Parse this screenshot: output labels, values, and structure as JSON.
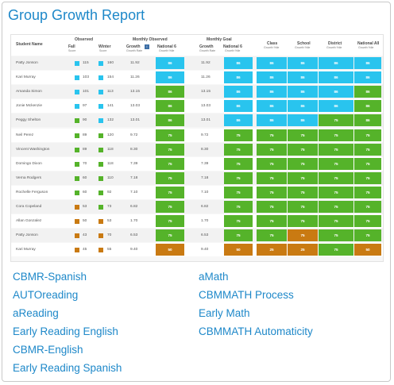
{
  "title": "Group Growth Report",
  "colors": {
    "blue": "#29c4ee",
    "green": "#55b32a",
    "orange": "#c97a12",
    "link": "#1e88c9"
  },
  "report": {
    "headers": {
      "student": "Student Name",
      "observed": "Observed",
      "fall": "Fall",
      "winter": "Winter",
      "score": "Score",
      "monthly_observed": "Monthly Observed",
      "monthly_goal": "Monthly Goal",
      "growth": "Growth",
      "national": "National 6",
      "growth_rate": "Growth Rate",
      "growth_pct": "Growth %ile",
      "class": "Class",
      "school": "School",
      "district": "District",
      "national_all": "National All"
    },
    "rows": [
      {
        "name": "Patty Jonson",
        "fall": "115",
        "winter": "160",
        "growth": "11.92",
        "obs": "86",
        "goal": "11.92",
        "goal_pct": "86",
        "cls": "86",
        "sch": "86",
        "dist": "86",
        "nat": "86",
        "fc": "blue",
        "wc": "blue",
        "oc": "blue",
        "gc": "blue",
        "cc": "blue",
        "sc": "blue",
        "dc": "blue",
        "nc": "blue"
      },
      {
        "name": "Kari Murray",
        "fall": "103",
        "winter": "154",
        "growth": "11.26",
        "obs": "86",
        "goal": "11.26",
        "goal_pct": "86",
        "cls": "86",
        "sch": "86",
        "dist": "86",
        "nat": "86",
        "fc": "blue",
        "wc": "blue",
        "oc": "blue",
        "gc": "blue",
        "cc": "blue",
        "sc": "blue",
        "dc": "blue",
        "nc": "blue"
      },
      {
        "name": "Amanda Simon",
        "fall": "101",
        "winter": "113",
        "growth": "13.15",
        "obs": "86",
        "goal": "13.15",
        "goal_pct": "86",
        "cls": "86",
        "sch": "86",
        "dist": "86",
        "nat": "86",
        "fc": "blue",
        "wc": "blue",
        "oc": "green",
        "gc": "blue",
        "cc": "blue",
        "sc": "blue",
        "dc": "blue",
        "nc": "green"
      },
      {
        "name": "Jonie Mckenzie",
        "fall": "97",
        "winter": "141",
        "growth": "13.03",
        "obs": "86",
        "goal": "13.03",
        "goal_pct": "86",
        "cls": "86",
        "sch": "86",
        "dist": "86",
        "nat": "86",
        "fc": "blue",
        "wc": "blue",
        "oc": "green",
        "gc": "blue",
        "cc": "blue",
        "sc": "blue",
        "dc": "blue",
        "nc": "green"
      },
      {
        "name": "Peggy Shelton",
        "fall": "90",
        "winter": "132",
        "growth": "13.01",
        "obs": "86",
        "goal": "13.01",
        "goal_pct": "86",
        "cls": "86",
        "sch": "86",
        "dist": "75",
        "nat": "86",
        "fc": "green",
        "wc": "blue",
        "oc": "green",
        "gc": "blue",
        "cc": "blue",
        "sc": "blue",
        "dc": "green",
        "nc": "green"
      },
      {
        "name": "Neil Perez",
        "fall": "89",
        "winter": "120",
        "growth": "9.72",
        "obs": "75",
        "goal": "9.72",
        "goal_pct": "75",
        "cls": "75",
        "sch": "75",
        "dist": "75",
        "nat": "75",
        "fc": "green",
        "wc": "green",
        "oc": "green",
        "gc": "green",
        "cc": "green",
        "sc": "green",
        "dc": "green",
        "nc": "green"
      },
      {
        "name": "Vincent Washington",
        "fall": "89",
        "winter": "118",
        "growth": "8.30",
        "obs": "75",
        "goal": "8.30",
        "goal_pct": "75",
        "cls": "75",
        "sch": "75",
        "dist": "75",
        "nat": "75",
        "fc": "green",
        "wc": "green",
        "oc": "green",
        "gc": "green",
        "cc": "green",
        "sc": "green",
        "dc": "green",
        "nc": "green"
      },
      {
        "name": "Domingo Dixon",
        "fall": "70",
        "winter": "118",
        "growth": "7.39",
        "obs": "75",
        "goal": "7.39",
        "goal_pct": "75",
        "cls": "75",
        "sch": "75",
        "dist": "75",
        "nat": "75",
        "fc": "green",
        "wc": "green",
        "oc": "green",
        "gc": "green",
        "cc": "green",
        "sc": "green",
        "dc": "green",
        "nc": "green"
      },
      {
        "name": "Verna Rodgers",
        "fall": "60",
        "winter": "110",
        "growth": "7.18",
        "obs": "75",
        "goal": "7.18",
        "goal_pct": "75",
        "cls": "75",
        "sch": "75",
        "dist": "75",
        "nat": "75",
        "fc": "green",
        "wc": "green",
        "oc": "green",
        "gc": "green",
        "cc": "green",
        "sc": "green",
        "dc": "green",
        "nc": "green"
      },
      {
        "name": "Rochelle Ferguson",
        "fall": "60",
        "winter": "92",
        "growth": "7.10",
        "obs": "75",
        "goal": "7.10",
        "goal_pct": "75",
        "cls": "75",
        "sch": "75",
        "dist": "75",
        "nat": "75",
        "fc": "green",
        "wc": "green",
        "oc": "green",
        "gc": "green",
        "cc": "green",
        "sc": "green",
        "dc": "green",
        "nc": "green"
      },
      {
        "name": "Cora Copeland",
        "fall": "53",
        "winter": "73",
        "growth": "6.82",
        "obs": "75",
        "goal": "6.82",
        "goal_pct": "75",
        "cls": "75",
        "sch": "75",
        "dist": "75",
        "nat": "75",
        "fc": "orange",
        "wc": "green",
        "oc": "green",
        "gc": "green",
        "cc": "green",
        "sc": "green",
        "dc": "green",
        "nc": "green"
      },
      {
        "name": "Allan Gonzalez",
        "fall": "50",
        "winter": "53",
        "growth": "1.70",
        "obs": "75",
        "goal": "1.70",
        "goal_pct": "75",
        "cls": "75",
        "sch": "75",
        "dist": "75",
        "nat": "75",
        "fc": "orange",
        "wc": "orange",
        "oc": "green",
        "gc": "green",
        "cc": "green",
        "sc": "green",
        "dc": "green",
        "nc": "green"
      },
      {
        "name": "Patty Jonson",
        "fall": "43",
        "winter": "70",
        "growth": "6.53",
        "obs": "75",
        "goal": "6.53",
        "goal_pct": "75",
        "cls": "75",
        "sch": "75",
        "dist": "75",
        "nat": "75",
        "fc": "orange",
        "wc": "orange",
        "oc": "green",
        "gc": "green",
        "cc": "green",
        "sc": "orange",
        "dc": "green",
        "nc": "green"
      },
      {
        "name": "Kari Murray",
        "fall": "45",
        "winter": "55",
        "growth": "9.40",
        "obs": "50",
        "goal": "9.40",
        "goal_pct": "50",
        "cls": "25",
        "sch": "25",
        "dist": "75",
        "nat": "50",
        "fc": "orange",
        "wc": "orange",
        "oc": "orange",
        "gc": "orange",
        "cc": "orange",
        "sc": "orange",
        "dc": "green",
        "nc": "orange"
      }
    ]
  },
  "links_left": [
    "CBMR-Spanish",
    "AUTOreading",
    "aReading",
    "Early Reading English",
    "CBMR-English",
    "Early Reading Spanish"
  ],
  "links_right": [
    "aMath",
    "CBMMATH Process",
    "Early Math",
    "CBMMATH Automaticity"
  ]
}
